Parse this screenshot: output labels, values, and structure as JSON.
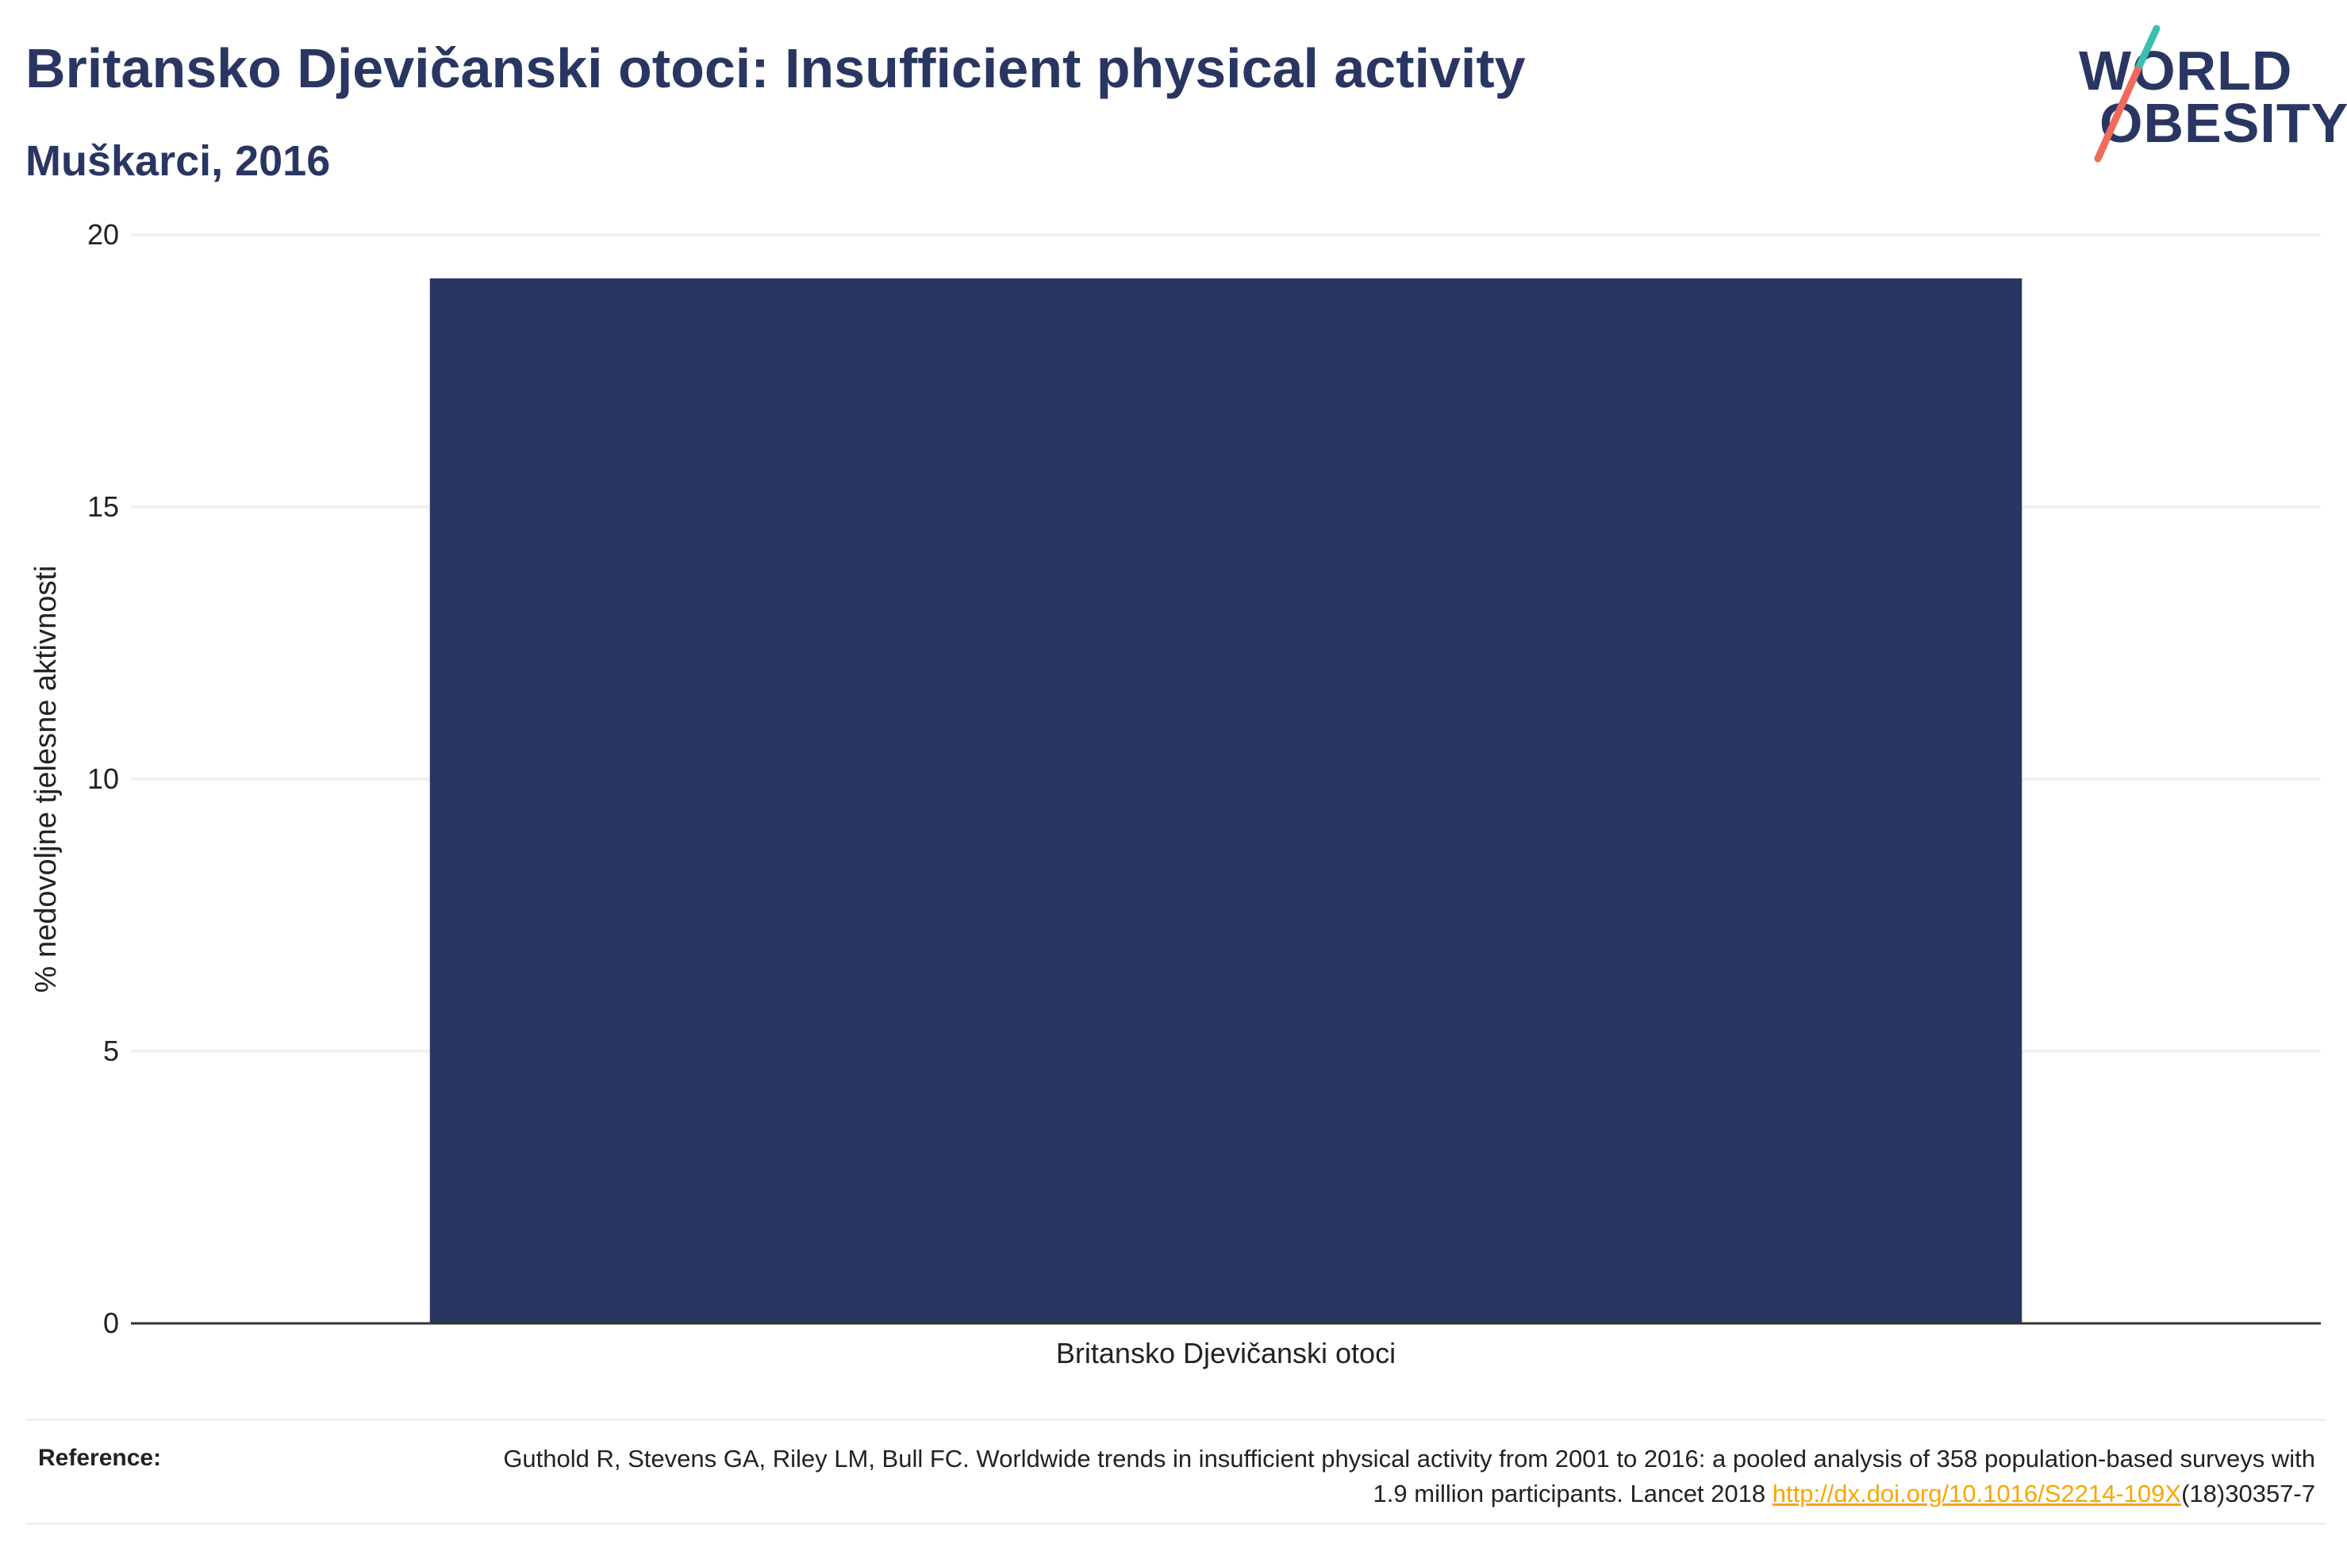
{
  "header": {
    "title": "Britansko Djevičanski otoci: Insufficient physical activity",
    "subtitle": "Muškarci, 2016"
  },
  "logo": {
    "line1": "WORLD",
    "line2": "OBESITY",
    "colors": {
      "text": "#2a3662",
      "accent_teal": "#3bbfb0",
      "accent_coral": "#ef6b5d"
    }
  },
  "chart_data": {
    "type": "bar",
    "categories": [
      "Britansko Djevičanski otoci"
    ],
    "values": [
      19.2
    ],
    "title": "Britansko Djevičanski otoci: Insufficient physical activity",
    "subtitle": "Muškarci, 2016",
    "xlabel": "",
    "ylabel": "% nedovoljne tjelesne aktivnosti",
    "ylim": [
      0,
      20
    ],
    "yticks": [
      0,
      5,
      10,
      15,
      20
    ],
    "grid": true,
    "bar_color": "#2a3662"
  },
  "reference": {
    "label": "Reference:",
    "text_before": "Guthold R, Stevens GA, Riley LM, Bull FC. Worldwide trends in insufficient physical activity from 2001 to 2016: a pooled analysis of 358 population-based surveys with 1.9 million participants. Lancet 2018 ",
    "link": "http://dx.doi.org/10.1016/S2214-109X",
    "text_after": "(18)30357-7"
  }
}
